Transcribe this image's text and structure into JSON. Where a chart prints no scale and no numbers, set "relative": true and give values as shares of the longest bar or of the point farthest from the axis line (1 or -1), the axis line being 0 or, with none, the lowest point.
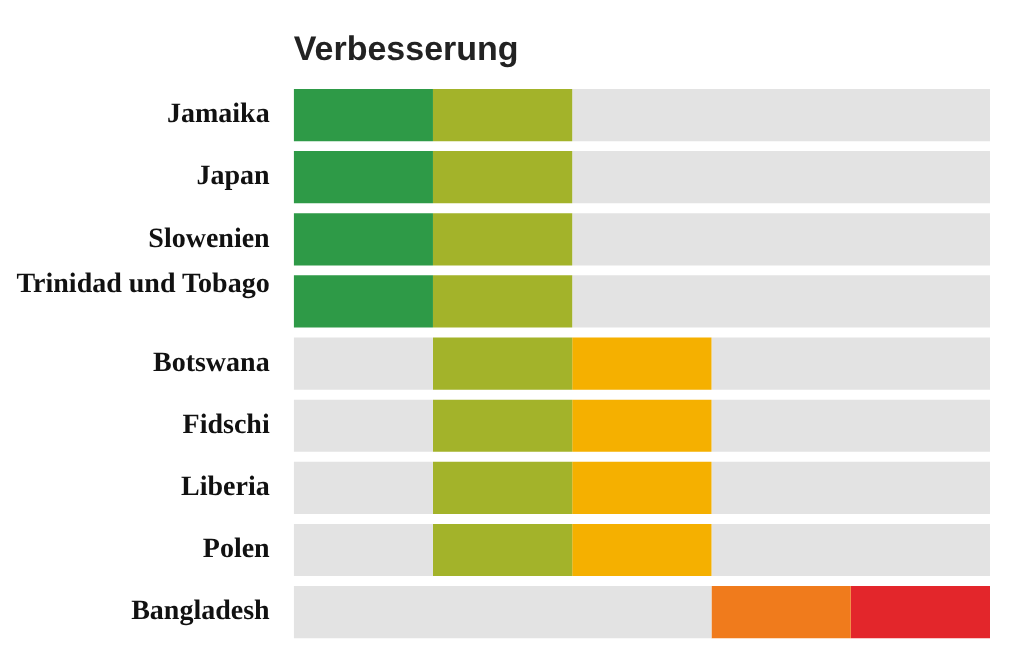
{
  "chart_data": {
    "type": "bar",
    "orientation": "horizontal",
    "stacked": true,
    "relative": true,
    "title": "Verbesserung",
    "categories": [
      "Jamaika",
      "Japan",
      "Slowenien",
      "Trinidad und Tobago",
      "Botswana",
      "Fidschi",
      "Liberia",
      "Polen",
      "Bangladesh"
    ],
    "series": [
      {
        "color": "#e3e3e3",
        "values": [
          0,
          0,
          0,
          0,
          0.2,
          0.2,
          0.2,
          0.2,
          0.6
        ]
      },
      {
        "colors": [
          "#2e9a47",
          "#2e9a47",
          "#2e9a47",
          "#2e9a47",
          "#a3b32a",
          "#a3b32a",
          "#a3b32a",
          "#a3b32a",
          "#f07b1c"
        ],
        "values": [
          0.2,
          0.2,
          0.2,
          0.2,
          0.2,
          0.2,
          0.2,
          0.2,
          0.2
        ]
      },
      {
        "colors": [
          "#a3b32a",
          "#a3b32a",
          "#a3b32a",
          "#a3b32a",
          "#f5b000",
          "#f5b000",
          "#f5b000",
          "#f5b000",
          "#e3262b"
        ],
        "values": [
          0.2,
          0.2,
          0.2,
          0.2,
          0.2,
          0.2,
          0.2,
          0.2,
          0.2
        ]
      },
      {
        "color": "#e3e3e3",
        "values": [
          0.6,
          0.6,
          0.6,
          0.6,
          0.4,
          0.4,
          0.4,
          0.4,
          0
        ]
      }
    ]
  }
}
